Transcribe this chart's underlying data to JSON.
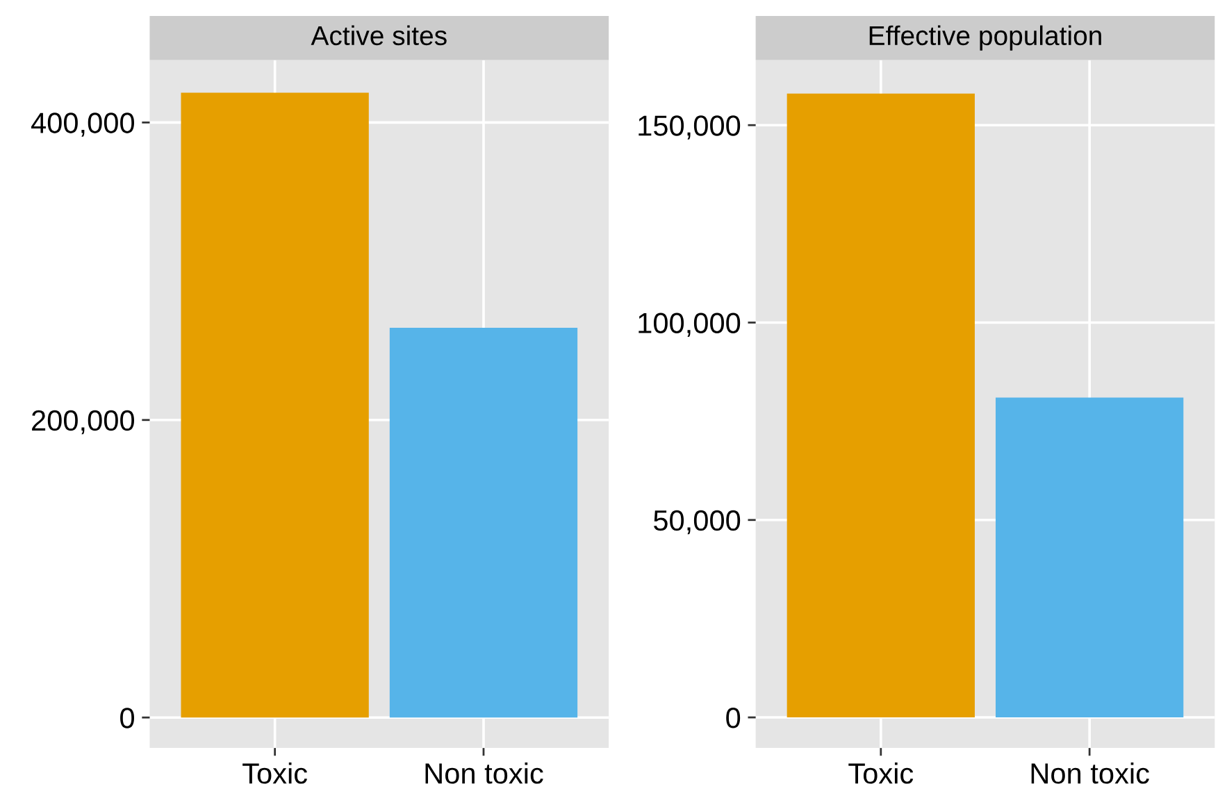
{
  "chart_data": [
    {
      "type": "bar",
      "title": "Active sites",
      "categories": [
        "Toxic",
        "Non toxic"
      ],
      "values": [
        420000,
        262000
      ],
      "colors": [
        "#e69f00",
        "#56b4e9"
      ],
      "ylim": [
        -20500,
        442000
      ],
      "yticks": [
        {
          "value": 0,
          "label": "0"
        },
        {
          "value": 200000,
          "label": "200,000"
        },
        {
          "value": 400000,
          "label": "400,000"
        }
      ],
      "grid": true
    },
    {
      "type": "bar",
      "title": "Effective population",
      "categories": [
        "Toxic",
        "Non toxic"
      ],
      "values": [
        158000,
        81000
      ],
      "colors": [
        "#e69f00",
        "#56b4e9"
      ],
      "ylim": [
        -7750,
        166500
      ],
      "yticks": [
        {
          "value": 0,
          "label": "0"
        },
        {
          "value": 50000,
          "label": "50,000"
        },
        {
          "value": 100000,
          "label": "100,000"
        },
        {
          "value": 150000,
          "label": "150,000"
        }
      ],
      "grid": true
    }
  ]
}
